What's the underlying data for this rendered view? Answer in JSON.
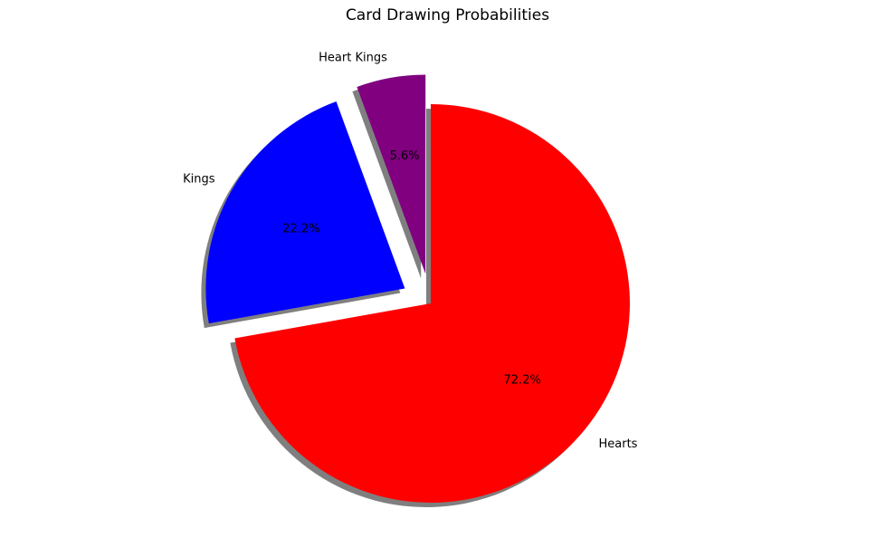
{
  "chart_data": {
    "type": "pie",
    "title": "Card Drawing Probabilities",
    "start_angle_deg": 90,
    "direction": "clockwise",
    "shadow": true,
    "slices": [
      {
        "label": "Hearts",
        "value": 72.2,
        "pct_label": "72.2%",
        "color": "#ff0000",
        "exploded": false
      },
      {
        "label": "Kings",
        "value": 22.2,
        "pct_label": "22.2%",
        "color": "#0000ff",
        "exploded": true
      },
      {
        "label": "Heart Kings",
        "value": 5.6,
        "pct_label": "5.6%",
        "color": "#800080",
        "exploded": true
      }
    ]
  }
}
